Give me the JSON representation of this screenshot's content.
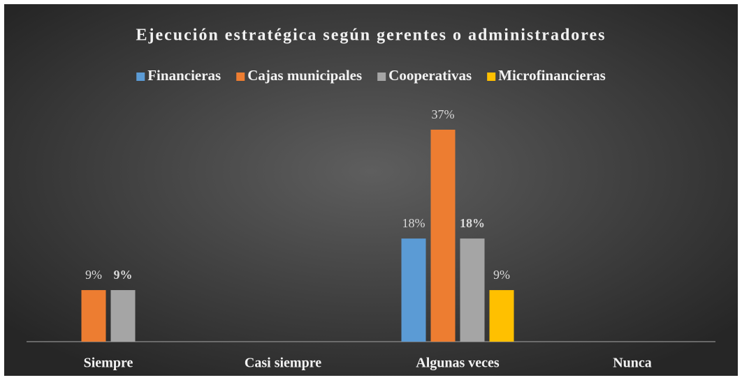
{
  "chart_data": {
    "type": "bar",
    "title": "Ejecución estratégica  según gerentes o administradores",
    "categories": [
      "Siempre",
      "Casi siempre",
      "Algunas veces",
      "Nunca"
    ],
    "series": [
      {
        "name": "Financieras",
        "color": "#5b9bd5",
        "values": [
          null,
          null,
          18,
          null
        ],
        "value_labels": [
          null,
          null,
          "18%",
          null
        ]
      },
      {
        "name": "Cajas municipales",
        "color": "#ed7d31",
        "values": [
          9,
          null,
          37,
          null
        ],
        "value_labels": [
          "9%",
          null,
          "37%",
          null
        ]
      },
      {
        "name": "Cooperativas",
        "color": "#a5a5a5",
        "values": [
          9,
          null,
          18,
          null
        ],
        "value_labels": [
          "9%",
          null,
          "18%",
          null
        ]
      },
      {
        "name": "Microfinancieras",
        "color": "#ffc000",
        "values": [
          null,
          null,
          9,
          null
        ],
        "value_labels": [
          null,
          null,
          "9%",
          null
        ]
      }
    ],
    "legend": "top"
  }
}
